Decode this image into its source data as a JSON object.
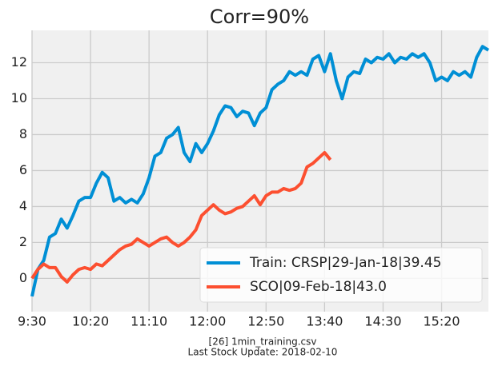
{
  "chart_data": {
    "type": "line",
    "title": "Corr=90%",
    "footnotes": [
      "[26] 1min_training.csv",
      "Last Stock Update: 2018-02-10"
    ],
    "x": [
      0,
      5,
      10,
      15,
      20,
      25,
      30,
      35,
      40,
      45,
      50,
      55,
      60,
      65,
      70,
      75,
      80,
      85,
      90,
      95,
      100,
      105,
      110,
      115,
      120,
      125,
      130,
      135,
      140,
      145,
      150,
      155,
      160,
      165,
      170,
      175,
      180,
      185,
      190,
      195,
      200,
      205,
      210,
      215,
      220,
      225,
      230,
      235,
      240,
      245,
      250,
      255,
      260,
      265,
      270,
      275,
      280,
      285,
      290,
      295,
      300,
      305,
      310,
      315,
      320,
      325,
      330,
      335,
      340,
      345,
      350,
      355,
      360,
      365,
      370,
      375,
      380,
      385,
      390
    ],
    "series": [
      {
        "name": "Train: CRSP|29-Jan-18|39.45",
        "color": "#008fd5",
        "values": [
          -1,
          0.5,
          1,
          2.3,
          2.5,
          3.3,
          2.8,
          3.5,
          4.3,
          4.5,
          4.5,
          5.3,
          5.9,
          5.6,
          4.3,
          4.5,
          4.2,
          4.4,
          4.2,
          4.7,
          5.6,
          6.8,
          7.0,
          7.8,
          8.0,
          8.4,
          7.0,
          6.5,
          7.5,
          7.0,
          7.5,
          8.2,
          9.1,
          9.6,
          9.5,
          9.0,
          9.3,
          9.2,
          8.5,
          9.2,
          9.5,
          10.5,
          10.8,
          11.0,
          11.5,
          11.3,
          11.5,
          11.3,
          12.2,
          12.4,
          11.5,
          12.5,
          11.0,
          10.0,
          11.2,
          11.5,
          11.4,
          12.2,
          12.0,
          12.3,
          12.2,
          12.5,
          12.0,
          12.3,
          12.2,
          12.5,
          12.3,
          12.5,
          12.0,
          11.0,
          11.2,
          11.0,
          11.5,
          11.3,
          11.5,
          11.2,
          12.3,
          12.9,
          12.7
        ]
      },
      {
        "name": "SCO|09-Feb-18|43.0",
        "color": "#fc4f30",
        "values": [
          0,
          0.5,
          0.8,
          0.6,
          0.6,
          0.1,
          -0.2,
          0.2,
          0.5,
          0.6,
          0.5,
          0.8,
          0.7,
          1.0,
          1.3,
          1.6,
          1.8,
          1.9,
          2.2,
          2.0,
          1.8,
          2.0,
          2.2,
          2.3,
          2.0,
          1.8,
          2.0,
          2.3,
          2.7,
          3.5,
          3.8,
          4.1,
          3.8,
          3.6,
          3.7,
          3.9,
          4.0,
          4.3,
          4.6,
          4.1,
          4.6,
          4.8,
          4.8,
          5.0,
          4.9,
          5.0,
          5.3,
          6.2,
          6.4,
          6.7,
          7.0,
          6.6,
          null,
          null,
          null,
          null,
          null,
          null,
          null,
          null,
          null,
          null,
          null,
          null,
          null,
          null,
          null,
          null,
          null,
          null,
          null,
          null,
          null,
          null,
          null,
          null,
          null,
          null,
          null
        ]
      }
    ],
    "xlim": [
      0,
      390
    ],
    "xticks": [
      {
        "value": 0,
        "label": "9:30"
      },
      {
        "value": 50,
        "label": "10:20"
      },
      {
        "value": 100,
        "label": "11:10"
      },
      {
        "value": 150,
        "label": "12:00"
      },
      {
        "value": 200,
        "label": "12:50"
      },
      {
        "value": 250,
        "label": "13:40"
      },
      {
        "value": 300,
        "label": "14:30"
      },
      {
        "value": 350,
        "label": "15:20"
      }
    ],
    "ylim": [
      -1.85,
      13.8
    ],
    "yticks": [
      0,
      2,
      4,
      6,
      8,
      10,
      12
    ],
    "grid": true,
    "legend": "lower right"
  }
}
